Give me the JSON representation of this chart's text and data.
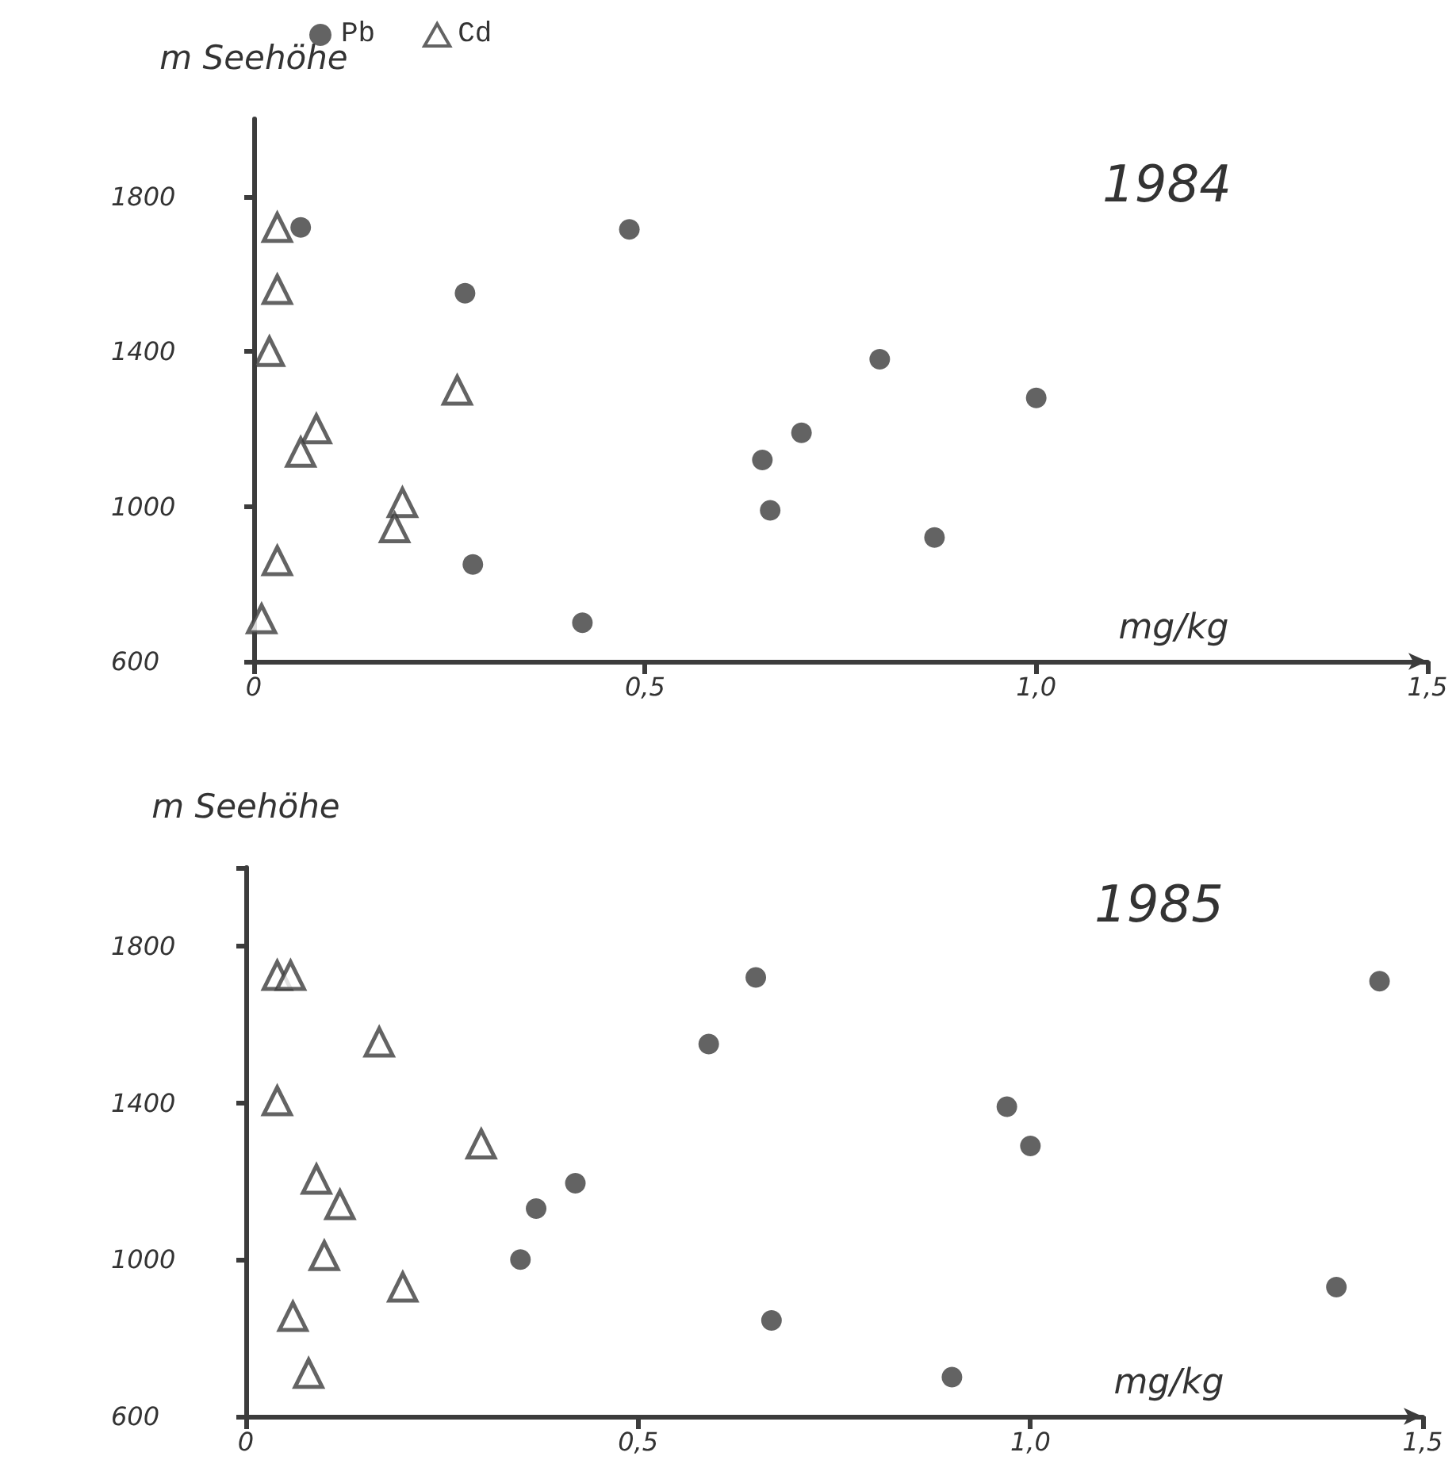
{
  "chart_data": [
    {
      "type": "scatter",
      "title": "1984",
      "xlabel": "mg/kg",
      "ylabel": "m Seehöhe",
      "legend": "top left",
      "xlim": [
        0,
        1.5
      ],
      "xticks": [
        0,
        {
          "value": 0.5,
          "label": "0,5"
        },
        {
          "value": 1.0,
          "label": "1,0"
        },
        {
          "value": 1.5,
          "label": "1,5"
        }
      ],
      "ylim": [
        600,
        2000
      ],
      "yticks": [
        600,
        1000,
        1400,
        1800
      ],
      "series": [
        {
          "name": "Pb",
          "color": "#3c3c3c",
          "marker": "circle",
          "x": [
            0.06,
            0.48,
            0.27,
            0.8,
            1.0,
            0.7,
            0.65,
            0.66,
            0.87,
            0.28,
            0.42
          ],
          "values": [
            1720,
            1715,
            1550,
            1380,
            1280,
            1190,
            1120,
            990,
            920,
            850,
            700
          ]
        },
        {
          "name": "Cd",
          "color": "#3c3c3c",
          "marker": "triangle",
          "x": [
            0.03,
            0.03,
            0.02,
            0.26,
            0.08,
            0.06,
            0.19,
            0.18,
            0.03,
            0.01
          ],
          "values": [
            1720,
            1560,
            1400,
            1300,
            1200,
            1140,
            1010,
            945,
            860,
            710
          ]
        }
      ]
    },
    {
      "type": "scatter",
      "title": "1985",
      "xlabel": "mg/kg",
      "ylabel": "m Seehöhe",
      "xlim": [
        0,
        1.5
      ],
      "xticks": [
        0,
        {
          "value": 0.5,
          "label": "0,5"
        },
        {
          "value": 1.0,
          "label": "1,0"
        },
        {
          "value": 1.5,
          "label": "1,5"
        }
      ],
      "ylim": [
        600,
        2000
      ],
      "yticks": [
        600,
        1000,
        1400,
        1800,
        {
          "value": 2000,
          "label": null
        }
      ],
      "series": [
        {
          "color": "#3c3c3c",
          "marker": "circle",
          "x": [
            0.65,
            0.59,
            1.445,
            0.97,
            1.0,
            0.42,
            0.37,
            0.35,
            1.39,
            0.67,
            0.9
          ],
          "values": [
            1720,
            1550,
            1710,
            1390,
            1290,
            1195,
            1130,
            1000,
            930,
            845,
            700
          ]
        },
        {
          "color": "#3c3c3c",
          "marker": "triangle",
          "x": [
            0.04,
            0.057,
            0.17,
            0.04,
            0.3,
            0.09,
            0.12,
            0.1,
            0.2,
            0.06,
            0.08
          ],
          "values": [
            1725,
            1725,
            1555,
            1405,
            1295,
            1205,
            1140,
            1010,
            930,
            855,
            710
          ]
        }
      ]
    }
  ]
}
